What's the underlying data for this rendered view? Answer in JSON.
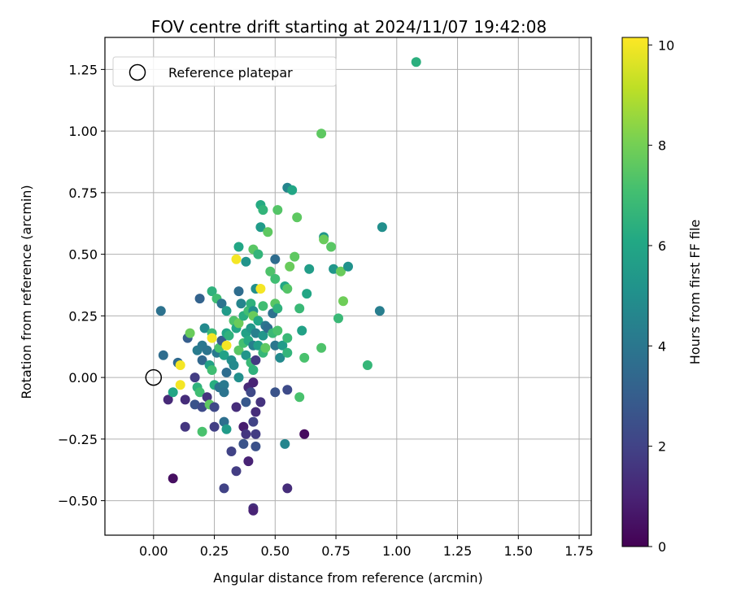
{
  "chart_data": {
    "type": "scatter",
    "title": "FOV centre drift starting at 2024/11/07 19:42:08",
    "xlabel": "Angular distance from reference (arcmin)",
    "ylabel": "Rotation from reference (arcmin)",
    "xlim": [
      -0.2,
      1.8
    ],
    "ylim": [
      -0.64,
      1.38
    ],
    "xticks": [
      0.0,
      0.25,
      0.5,
      0.75,
      1.0,
      1.25,
      1.5,
      1.75
    ],
    "xtick_labels": [
      "0.00",
      "0.25",
      "0.50",
      "0.75",
      "1.00",
      "1.25",
      "1.50",
      "1.75"
    ],
    "yticks": [
      -0.5,
      -0.25,
      0.0,
      0.25,
      0.5,
      0.75,
      1.0,
      1.25
    ],
    "ytick_labels": [
      "−0.50",
      "−0.25",
      "0.00",
      "0.25",
      "0.50",
      "0.75",
      "1.00",
      "1.25"
    ],
    "grid": true,
    "legend": {
      "placement": "top-left",
      "entries": [
        "Reference platepar"
      ]
    },
    "reference_point": {
      "x": 0.0,
      "y": 0.0,
      "label": "Reference platepar"
    },
    "colorbar": {
      "label": "Hours from first FF file",
      "min": 0,
      "max": 10.15,
      "ticks": [
        0,
        2,
        4,
        6,
        8,
        10
      ],
      "tick_labels": [
        "0",
        "2",
        "4",
        "6",
        "8",
        "10"
      ],
      "colormap": "viridis"
    },
    "points_columns": [
      "x",
      "y",
      "hours"
    ],
    "points": [
      [
        0.03,
        0.27,
        3.8
      ],
      [
        0.04,
        0.09,
        3.6
      ],
      [
        0.06,
        -0.09,
        1.2
      ],
      [
        0.08,
        -0.41,
        0.4
      ],
      [
        0.08,
        -0.06,
        6.0
      ],
      [
        0.1,
        0.06,
        3.5
      ],
      [
        0.11,
        0.05,
        10.0
      ],
      [
        0.11,
        -0.03,
        10.0
      ],
      [
        0.13,
        -0.09,
        1.3
      ],
      [
        0.13,
        -0.2,
        1.6
      ],
      [
        0.14,
        0.16,
        3.0
      ],
      [
        0.15,
        0.18,
        7.8
      ],
      [
        0.17,
        -0.11,
        2.6
      ],
      [
        0.17,
        0.0,
        1.8
      ],
      [
        0.18,
        0.11,
        4.2
      ],
      [
        0.18,
        -0.04,
        6.5
      ],
      [
        0.19,
        0.32,
        3.2
      ],
      [
        0.19,
        -0.06,
        7.0
      ],
      [
        0.2,
        0.13,
        4.0
      ],
      [
        0.2,
        0.07,
        3.4
      ],
      [
        0.2,
        -0.12,
        2.3
      ],
      [
        0.2,
        -0.22,
        7.2
      ],
      [
        0.21,
        0.2,
        4.8
      ],
      [
        0.22,
        0.11,
        3.9
      ],
      [
        0.22,
        -0.08,
        1.5
      ],
      [
        0.23,
        0.05,
        5.8
      ],
      [
        0.23,
        -0.11,
        7.6
      ],
      [
        0.24,
        0.35,
        6.5
      ],
      [
        0.24,
        0.18,
        6.8
      ],
      [
        0.24,
        0.16,
        10.0
      ],
      [
        0.24,
        0.03,
        7.0
      ],
      [
        0.25,
        -0.2,
        1.9
      ],
      [
        0.25,
        -0.03,
        6.3
      ],
      [
        0.25,
        -0.12,
        2.2
      ],
      [
        0.26,
        0.1,
        4.1
      ],
      [
        0.26,
        0.32,
        7.0
      ],
      [
        0.27,
        0.12,
        7.2
      ],
      [
        0.27,
        -0.04,
        3.8
      ],
      [
        0.28,
        0.3,
        3.9
      ],
      [
        0.28,
        0.15,
        3.0
      ],
      [
        0.29,
        0.09,
        5.8
      ],
      [
        0.29,
        -0.03,
        4.1
      ],
      [
        0.29,
        -0.06,
        3.9
      ],
      [
        0.29,
        -0.18,
        3.7
      ],
      [
        0.29,
        -0.45,
        2.0
      ],
      [
        0.3,
        0.27,
        5.5
      ],
      [
        0.3,
        0.18,
        6.0
      ],
      [
        0.3,
        0.13,
        10.0
      ],
      [
        0.3,
        0.02,
        3.6
      ],
      [
        0.3,
        -0.21,
        5.5
      ],
      [
        0.31,
        0.17,
        6.5
      ],
      [
        0.32,
        0.07,
        5.0
      ],
      [
        0.32,
        -0.3,
        2.0
      ],
      [
        0.33,
        0.23,
        7.3
      ],
      [
        0.33,
        0.05,
        4.8
      ],
      [
        0.34,
        0.48,
        10.0
      ],
      [
        0.34,
        0.2,
        6.0
      ],
      [
        0.34,
        -0.12,
        1.3
      ],
      [
        0.34,
        -0.38,
        1.8
      ],
      [
        0.35,
        0.35,
        3.6
      ],
      [
        0.35,
        0.22,
        7.8
      ],
      [
        0.35,
        0.11,
        7.5
      ],
      [
        0.35,
        0.0,
        5.0
      ],
      [
        0.35,
        0.53,
        6.0
      ],
      [
        0.36,
        0.3,
        4.6
      ],
      [
        0.37,
        0.25,
        6.3
      ],
      [
        0.37,
        0.14,
        7.1
      ],
      [
        0.37,
        -0.2,
        0.8
      ],
      [
        0.37,
        -0.27,
        2.6
      ],
      [
        0.38,
        0.47,
        5.2
      ],
      [
        0.38,
        0.18,
        5.8
      ],
      [
        0.38,
        0.09,
        5.3
      ],
      [
        0.38,
        -0.1,
        2.8
      ],
      [
        0.38,
        -0.23,
        1.6
      ],
      [
        0.39,
        0.27,
        7.0
      ],
      [
        0.39,
        0.15,
        6.2
      ],
      [
        0.39,
        -0.04,
        1.2
      ],
      [
        0.39,
        -0.34,
        1.0
      ],
      [
        0.4,
        0.3,
        6.5
      ],
      [
        0.4,
        0.2,
        5.4
      ],
      [
        0.4,
        0.06,
        6.8
      ],
      [
        0.4,
        -0.06,
        2.2
      ],
      [
        0.41,
        0.52,
        7.5
      ],
      [
        0.41,
        0.27,
        5.0
      ],
      [
        0.41,
        0.25,
        7.8
      ],
      [
        0.41,
        0.13,
        4.4
      ],
      [
        0.41,
        0.03,
        6.5
      ],
      [
        0.41,
        -0.02,
        1.0
      ],
      [
        0.41,
        -0.18,
        2.0
      ],
      [
        0.41,
        -0.53,
        1.4
      ],
      [
        0.41,
        -0.54,
        1.0
      ],
      [
        0.42,
        0.36,
        5.0
      ],
      [
        0.42,
        0.18,
        4.4
      ],
      [
        0.42,
        0.07,
        1.7
      ],
      [
        0.42,
        -0.14,
        1.3
      ],
      [
        0.42,
        -0.23,
        1.8
      ],
      [
        0.42,
        -0.28,
        2.5
      ],
      [
        0.43,
        0.5,
        6.6
      ],
      [
        0.43,
        0.23,
        6.0
      ],
      [
        0.43,
        0.13,
        5.7
      ],
      [
        0.44,
        0.36,
        10.0
      ],
      [
        0.44,
        0.61,
        5.5
      ],
      [
        0.44,
        0.7,
        6.2
      ],
      [
        0.44,
        -0.1,
        1.5
      ],
      [
        0.45,
        0.68,
        6.6
      ],
      [
        0.45,
        0.29,
        7.0
      ],
      [
        0.45,
        0.17,
        5.3
      ],
      [
        0.45,
        0.1,
        6.7
      ],
      [
        0.46,
        0.21,
        4.0
      ],
      [
        0.46,
        0.12,
        7.6
      ],
      [
        0.47,
        0.59,
        7.6
      ],
      [
        0.47,
        0.2,
        3.6
      ],
      [
        0.48,
        0.43,
        7.3
      ],
      [
        0.49,
        0.26,
        3.8
      ],
      [
        0.49,
        0.18,
        6.8
      ],
      [
        0.5,
        0.48,
        3.6
      ],
      [
        0.5,
        0.4,
        7.0
      ],
      [
        0.5,
        0.3,
        7.5
      ],
      [
        0.5,
        0.13,
        4.0
      ],
      [
        0.5,
        -0.06,
        2.6
      ],
      [
        0.51,
        0.68,
        7.4
      ],
      [
        0.51,
        0.28,
        6.5
      ],
      [
        0.51,
        0.19,
        7.2
      ],
      [
        0.52,
        0.08,
        4.8
      ],
      [
        0.53,
        0.13,
        5.5
      ],
      [
        0.54,
        0.37,
        6.0
      ],
      [
        0.54,
        -0.27,
        4.6
      ],
      [
        0.55,
        0.77,
        4.6
      ],
      [
        0.55,
        0.36,
        7.4
      ],
      [
        0.55,
        0.16,
        6.8
      ],
      [
        0.55,
        0.1,
        6.6
      ],
      [
        0.55,
        -0.05,
        2.3
      ],
      [
        0.55,
        -0.45,
        1.3
      ],
      [
        0.56,
        0.45,
        7.8
      ],
      [
        0.57,
        0.76,
        6.0
      ],
      [
        0.58,
        0.49,
        7.6
      ],
      [
        0.59,
        0.65,
        7.6
      ],
      [
        0.6,
        0.28,
        6.8
      ],
      [
        0.6,
        -0.08,
        7.2
      ],
      [
        0.61,
        0.19,
        5.8
      ],
      [
        0.62,
        0.08,
        7.2
      ],
      [
        0.62,
        -0.23,
        0.3
      ],
      [
        0.63,
        0.34,
        6.0
      ],
      [
        0.64,
        0.44,
        5.6
      ],
      [
        0.69,
        0.99,
        7.6
      ],
      [
        0.69,
        0.12,
        7.3
      ],
      [
        0.7,
        0.57,
        5.3
      ],
      [
        0.7,
        0.56,
        7.8
      ],
      [
        0.73,
        0.53,
        7.5
      ],
      [
        0.74,
        0.44,
        5.3
      ],
      [
        0.76,
        0.24,
        6.8
      ],
      [
        0.77,
        0.43,
        7.8
      ],
      [
        0.78,
        0.31,
        7.9
      ],
      [
        0.8,
        0.45,
        5.1
      ],
      [
        0.88,
        0.05,
        6.7
      ],
      [
        0.93,
        0.27,
        4.3
      ],
      [
        0.94,
        0.61,
        5.0
      ],
      [
        1.08,
        1.28,
        6.4
      ]
    ]
  }
}
